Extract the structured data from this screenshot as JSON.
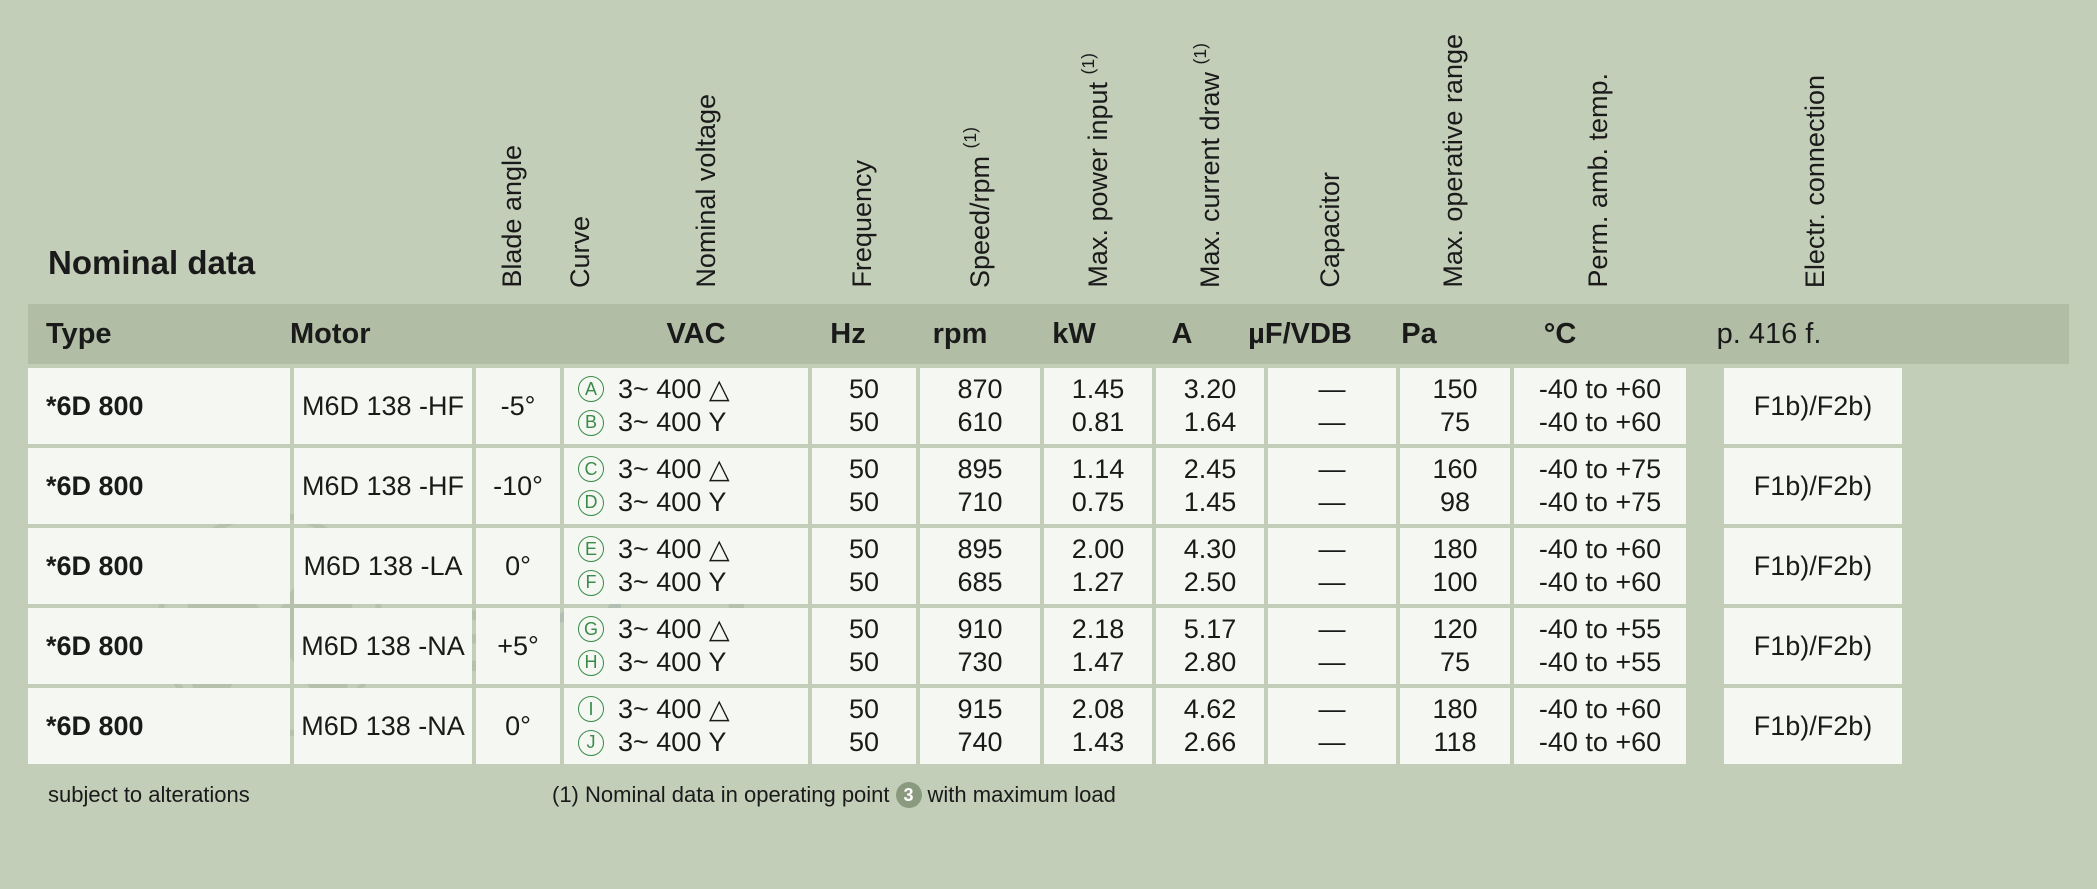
{
  "colors": {
    "page_bg": "#c3ceb8",
    "units_bg": "#b1bea5",
    "cell_bg": "#f5f8f2",
    "text": "#1a1a1a",
    "curve_accent": "#3a8a4a",
    "badge_bg": "#8a9a7f"
  },
  "typography": {
    "title_fontsize": 33,
    "header_label_fontsize": 27,
    "units_fontsize": 29,
    "body_fontsize": 27,
    "footer_fontsize": 22
  },
  "title": "Nominal data",
  "header_labels": {
    "blade_angle": "Blade angle",
    "curve": "Curve",
    "nominal_voltage": "Nominal voltage",
    "frequency": "Frequency",
    "speed_rpm": "Speed/rpm",
    "speed_rpm_sup": "(1)",
    "max_power": "Max. power input",
    "max_power_sup": "(1)",
    "max_current": "Max. current draw",
    "max_current_sup": "(1)",
    "capacitor": "Capacitor",
    "max_op_range": "Max. operative range",
    "perm_amb_temp": "Perm. amb. temp.",
    "electr_conn": "Electr. connection"
  },
  "units_row": {
    "type": "Type",
    "motor": "Motor",
    "vac": "VAC",
    "hz": "Hz",
    "rpm": "rpm",
    "kw": "kW",
    "a": "A",
    "cap": "µF/VDB",
    "pa": "Pa",
    "temp": "°C",
    "conn": "p. 416 f."
  },
  "rows": [
    {
      "type": "*6D 800",
      "motor": "M6D 138 -HF",
      "blade": "-5°",
      "conn": "F1b)/F2b)",
      "lines": [
        {
          "curve": "A",
          "volt": "3~  400 △",
          "hz": "50",
          "rpm": "870",
          "kw": "1.45",
          "a": "3.20",
          "cap": "—",
          "pa": "150",
          "temp": "-40 to +60"
        },
        {
          "curve": "B",
          "volt": "3~  400 Y",
          "hz": "50",
          "rpm": "610",
          "kw": "0.81",
          "a": "1.64",
          "cap": "—",
          "pa": "75",
          "temp": "-40 to +60"
        }
      ]
    },
    {
      "type": "*6D 800",
      "motor": "M6D 138 -HF",
      "blade": "-10°",
      "conn": "F1b)/F2b)",
      "lines": [
        {
          "curve": "C",
          "volt": "3~  400 △",
          "hz": "50",
          "rpm": "895",
          "kw": "1.14",
          "a": "2.45",
          "cap": "—",
          "pa": "160",
          "temp": "-40 to +75"
        },
        {
          "curve": "D",
          "volt": "3~  400 Y",
          "hz": "50",
          "rpm": "710",
          "kw": "0.75",
          "a": "1.45",
          "cap": "—",
          "pa": "98",
          "temp": "-40 to +75"
        }
      ]
    },
    {
      "type": "*6D 800",
      "motor": "M6D 138 -LA",
      "blade": "0°",
      "conn": "F1b)/F2b)",
      "lines": [
        {
          "curve": "E",
          "volt": "3~  400 △",
          "hz": "50",
          "rpm": "895",
          "kw": "2.00",
          "a": "4.30",
          "cap": "—",
          "pa": "180",
          "temp": "-40 to +60"
        },
        {
          "curve": "F",
          "volt": "3~  400 Y",
          "hz": "50",
          "rpm": "685",
          "kw": "1.27",
          "a": "2.50",
          "cap": "—",
          "pa": "100",
          "temp": "-40 to +60"
        }
      ]
    },
    {
      "type": "*6D 800",
      "motor": "M6D 138 -NA",
      "blade": "+5°",
      "conn": "F1b)/F2b)",
      "lines": [
        {
          "curve": "G",
          "volt": "3~  400 △",
          "hz": "50",
          "rpm": "910",
          "kw": "2.18",
          "a": "5.17",
          "cap": "—",
          "pa": "120",
          "temp": "-40 to +55"
        },
        {
          "curve": "H",
          "volt": "3~  400 Y",
          "hz": "50",
          "rpm": "730",
          "kw": "1.47",
          "a": "2.80",
          "cap": "—",
          "pa": "75",
          "temp": "-40 to +55"
        }
      ]
    },
    {
      "type": "*6D 800",
      "motor": "M6D 138 -NA",
      "blade": "0°",
      "conn": "F1b)/F2b)",
      "lines": [
        {
          "curve": "I",
          "volt": "3~  400 △",
          "hz": "50",
          "rpm": "915",
          "kw": "2.08",
          "a": "4.62",
          "cap": "—",
          "pa": "180",
          "temp": "-40 to +60"
        },
        {
          "curve": "J",
          "volt": "3~  400 Y",
          "hz": "50",
          "rpm": "740",
          "kw": "1.43",
          "a": "2.66",
          "cap": "—",
          "pa": "118",
          "temp": "-40 to +60"
        }
      ]
    }
  ],
  "footer": {
    "left": "subject to alterations",
    "right_pre": "(1) Nominal data in operating point",
    "right_badge": "3",
    "right_post": "with maximum load"
  }
}
